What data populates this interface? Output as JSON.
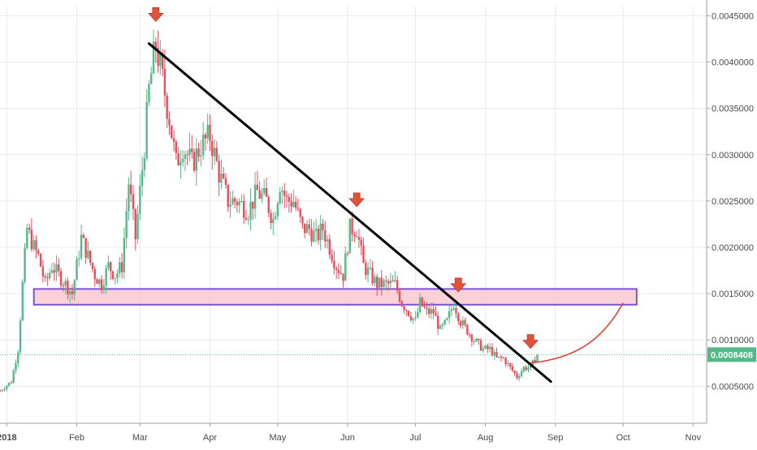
{
  "chart_data": {
    "type": "candlestick",
    "y_axis": {
      "position": "right",
      "ticks": [
        "0.0005000",
        "0.0010000",
        "0.0015000",
        "0.0020000",
        "0.0025000",
        "0.0030000",
        "0.0035000",
        "0.0040000",
        "0.0045000"
      ],
      "tick_values": [
        0.0005,
        0.001,
        0.0015,
        0.002,
        0.0025,
        0.003,
        0.0035,
        0.004,
        0.0045
      ],
      "ylim": [
        0.0001,
        0.0046
      ]
    },
    "x_axis": {
      "ticks": [
        "2018",
        "Feb",
        "Mar",
        "Apr",
        "May",
        "Jun",
        "Jul",
        "Aug",
        "Sep",
        "Oct",
        "Nov"
      ],
      "tick_dates": [
        "2018-01-01",
        "2018-02-01",
        "2018-03-01",
        "2018-04-01",
        "2018-05-01",
        "2018-06-01",
        "2018-07-01",
        "2018-08-01",
        "2018-09-01",
        "2018-10-01",
        "2018-11-01"
      ],
      "xlim": [
        "2017-12-29",
        "2018-11-07"
      ]
    },
    "last_price": {
      "label": "0.0008408",
      "value": 0.0008408,
      "color": "#53b987"
    },
    "colors": {
      "up": "#53b987",
      "down": "#eb4d5c",
      "grid": "#e6e9ee",
      "trendline": "#000000",
      "arrow": "#e0523a"
    },
    "price_series": [
      [
        "2017-12-29",
        0.00045
      ],
      [
        "2018-01-03",
        0.00055
      ],
      [
        "2018-01-06",
        0.0009
      ],
      [
        "2018-01-08",
        0.0016
      ],
      [
        "2018-01-10",
        0.0022
      ],
      [
        "2018-01-13",
        0.002
      ],
      [
        "2018-01-15",
        0.0019
      ],
      [
        "2018-01-18",
        0.0016
      ],
      [
        "2018-01-21",
        0.0018
      ],
      [
        "2018-01-24",
        0.0017
      ],
      [
        "2018-01-27",
        0.0016
      ],
      [
        "2018-01-30",
        0.0015
      ],
      [
        "2018-02-03",
        0.0021
      ],
      [
        "2018-02-06",
        0.0019
      ],
      [
        "2018-02-09",
        0.0017
      ],
      [
        "2018-02-12",
        0.0016
      ],
      [
        "2018-02-15",
        0.0018
      ],
      [
        "2018-02-18",
        0.0017
      ],
      [
        "2018-02-21",
        0.0018
      ],
      [
        "2018-02-24",
        0.0027
      ],
      [
        "2018-02-27",
        0.0021
      ],
      [
        "2018-03-01",
        0.0026
      ],
      [
        "2018-03-03",
        0.0031
      ],
      [
        "2018-03-05",
        0.0037
      ],
      [
        "2018-03-08",
        0.0042
      ],
      [
        "2018-03-11",
        0.0038
      ],
      [
        "2018-03-14",
        0.0034
      ],
      [
        "2018-03-17",
        0.0029
      ],
      [
        "2018-03-20",
        0.0031
      ],
      [
        "2018-03-24",
        0.0029
      ],
      [
        "2018-03-28",
        0.0031
      ],
      [
        "2018-04-01",
        0.0032
      ],
      [
        "2018-04-05",
        0.0028
      ],
      [
        "2018-04-09",
        0.0025
      ],
      [
        "2018-04-13",
        0.0025
      ],
      [
        "2018-04-18",
        0.0024
      ],
      [
        "2018-04-22",
        0.0026
      ],
      [
        "2018-04-26",
        0.0025
      ],
      [
        "2018-04-29",
        0.0023
      ],
      [
        "2018-05-02",
        0.0027
      ],
      [
        "2018-05-05",
        0.0025
      ],
      [
        "2018-05-08",
        0.0025
      ],
      [
        "2018-05-12",
        0.0022
      ],
      [
        "2018-05-15",
        0.0022
      ],
      [
        "2018-05-18",
        0.0021
      ],
      [
        "2018-05-21",
        0.0022
      ],
      [
        "2018-05-24",
        0.002
      ],
      [
        "2018-05-27",
        0.0018
      ],
      [
        "2018-05-30",
        0.0017
      ],
      [
        "2018-06-02",
        0.0022
      ],
      [
        "2018-06-05",
        0.0022
      ],
      [
        "2018-06-08",
        0.0018
      ],
      [
        "2018-06-11",
        0.0017
      ],
      [
        "2018-06-14",
        0.0016
      ],
      [
        "2018-06-18",
        0.0016
      ],
      [
        "2018-06-22",
        0.0016
      ],
      [
        "2018-06-25",
        0.0014
      ],
      [
        "2018-06-28",
        0.0013
      ],
      [
        "2018-07-01",
        0.0012
      ],
      [
        "2018-07-03",
        0.0014
      ],
      [
        "2018-07-06",
        0.0013
      ],
      [
        "2018-07-09",
        0.0013
      ],
      [
        "2018-07-12",
        0.0011
      ],
      [
        "2018-07-15",
        0.0012
      ],
      [
        "2018-07-18",
        0.0014
      ],
      [
        "2018-07-21",
        0.0012
      ],
      [
        "2018-07-24",
        0.0011
      ],
      [
        "2018-07-27",
        0.001
      ],
      [
        "2018-07-31",
        0.0009
      ],
      [
        "2018-08-03",
        0.0009
      ],
      [
        "2018-08-06",
        0.0008
      ],
      [
        "2018-08-09",
        0.0008
      ],
      [
        "2018-08-12",
        0.0007
      ],
      [
        "2018-08-15",
        0.0006
      ],
      [
        "2018-08-18",
        0.0007
      ],
      [
        "2018-08-21",
        0.0007
      ],
      [
        "2018-08-24",
        0.00084
      ]
    ],
    "trendline": {
      "from": [
        "2018-03-05",
        0.0042
      ],
      "to": [
        "2018-08-30",
        0.00055
      ],
      "color": "#000000"
    },
    "resistance_zone": {
      "from_date": "2018-01-13",
      "to_date": "2018-10-07",
      "low": 0.00138,
      "high": 0.00155,
      "fill": "#f9c9cf",
      "border": "#7b52d6"
    },
    "arrows": [
      {
        "date": "2018-03-08",
        "value": 0.0045
      },
      {
        "date": "2018-06-05",
        "value": 0.0025
      },
      {
        "date": "2018-07-20",
        "value": 0.00158
      },
      {
        "date": "2018-08-21",
        "value": 0.00097
      }
    ],
    "projection": {
      "points": [
        [
          "2018-08-21",
          0.00075
        ],
        [
          "2018-09-10",
          0.0008
        ],
        [
          "2018-09-22",
          0.001
        ],
        [
          "2018-10-01",
          0.0014
        ]
      ],
      "color": "#e03a2a"
    }
  }
}
